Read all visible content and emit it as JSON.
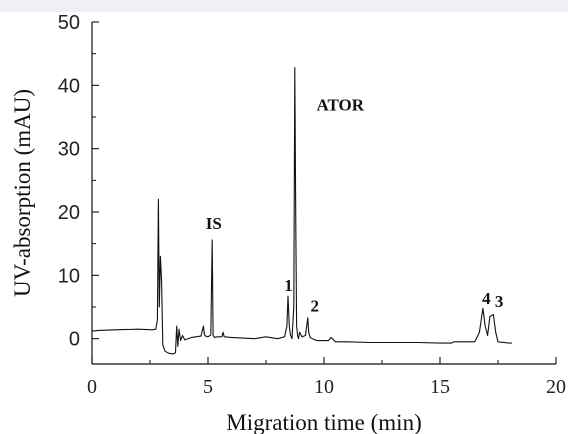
{
  "chart_data": {
    "type": "line",
    "title": "",
    "xlabel": "Migration time (min)",
    "ylabel": "UV-absorption (mAU)",
    "xlim": [
      0,
      20
    ],
    "ylim": [
      -4,
      50
    ],
    "xticks": [
      0,
      5,
      10,
      15,
      20
    ],
    "yticks": [
      0,
      10,
      20,
      30,
      40,
      50
    ],
    "grid": false,
    "series": [
      {
        "line_color": "#111111",
        "x": [
          0,
          0.3,
          1.0,
          2.0,
          2.6,
          2.75,
          2.82,
          2.86,
          2.9,
          2.95,
          3.0,
          3.05,
          3.15,
          3.3,
          3.5,
          3.6,
          3.65,
          3.7,
          3.75,
          3.82,
          3.9,
          4.0,
          4.3,
          4.7,
          4.8,
          4.85,
          4.9,
          5.0,
          5.12,
          5.18,
          5.22,
          5.28,
          5.4,
          5.6,
          5.65,
          5.7,
          6.0,
          7.0,
          7.5,
          8.0,
          8.3,
          8.4,
          8.45,
          8.5,
          8.55,
          8.62,
          8.7,
          8.74,
          8.78,
          8.82,
          8.86,
          8.9,
          8.95,
          9.05,
          9.2,
          9.3,
          9.34,
          9.4,
          9.5,
          9.7,
          10.2,
          10.3,
          10.5,
          11.0,
          12.0,
          13.0,
          14.0,
          15.0,
          15.5,
          15.6,
          16.0,
          16.5,
          16.7,
          16.85,
          16.95,
          17.05,
          17.15,
          17.3,
          17.4,
          17.5,
          18.0,
          18.1
        ],
        "y": [
          1.2,
          1.3,
          1.4,
          1.5,
          1.4,
          1.5,
          3.0,
          22.0,
          5.0,
          13.0,
          9.0,
          -1.0,
          -2.0,
          -2.3,
          -2.4,
          -2.2,
          2.0,
          -1.2,
          1.5,
          -0.3,
          0.5,
          -0.2,
          0.2,
          0.4,
          2.0,
          0.6,
          0.4,
          0.3,
          0.6,
          15.6,
          0.5,
          0.2,
          0.3,
          0.3,
          1.0,
          0.3,
          0.2,
          0.0,
          0.3,
          0.0,
          0.3,
          2.0,
          6.7,
          2.2,
          0.6,
          0.0,
          5.0,
          42.8,
          20.0,
          2.0,
          0.5,
          0.0,
          1.0,
          0.3,
          0.5,
          3.3,
          1.0,
          0.2,
          0.0,
          -0.3,
          -0.3,
          0.2,
          -0.5,
          -0.5,
          -0.6,
          -0.6,
          -0.6,
          -0.7,
          -0.7,
          -0.5,
          -0.5,
          -0.5,
          1.0,
          4.8,
          2.0,
          0.5,
          3.5,
          3.8,
          1.0,
          -0.5,
          -0.7,
          -0.7
        ]
      }
    ],
    "annotations": [
      {
        "text": "IS",
        "x": 5.25,
        "y": 17.3
      },
      {
        "text": "ATOR",
        "x": 10.7,
        "y": 36.0
      },
      {
        "text": "1",
        "x": 8.47,
        "y": 7.5
      },
      {
        "text": "2",
        "x": 9.6,
        "y": 4.3
      },
      {
        "text": "4",
        "x": 17.0,
        "y": 5.5
      },
      {
        "text": "3",
        "x": 17.55,
        "y": 5.0
      }
    ]
  }
}
